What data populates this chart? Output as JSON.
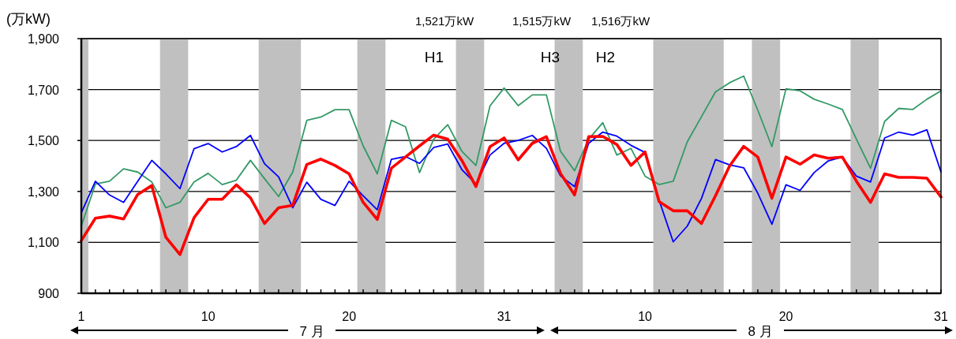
{
  "chart_data": {
    "type": "line",
    "ylabel": "(万kW)",
    "x": [
      "--07-01",
      "--07-02",
      "--07-03",
      "--07-04",
      "--07-05",
      "--07-06",
      "--07-07",
      "--07-08",
      "--07-09",
      "--07-10",
      "--07-11",
      "--07-12",
      "--07-13",
      "--07-14",
      "--07-15",
      "--07-16",
      "--07-17",
      "--07-18",
      "--07-19",
      "--07-20",
      "--07-21",
      "--07-22",
      "--07-23",
      "--07-24",
      "--07-25",
      "--07-26",
      "--07-27",
      "--07-28",
      "--07-29",
      "--07-30",
      "--07-31",
      "--08-01",
      "--08-02",
      "--08-03",
      "--08-04",
      "--08-05",
      "--08-06",
      "--08-07",
      "--08-08",
      "--08-09",
      "--08-10",
      "--08-11",
      "--08-12",
      "--08-13",
      "--08-14",
      "--08-15",
      "--08-16",
      "--08-17",
      "--08-18",
      "--08-19",
      "--08-20",
      "--08-21",
      "--08-22",
      "--08-23",
      "--08-24",
      "--08-25",
      "--08-26",
      "--08-27",
      "--08-28",
      "--08-29",
      "--08-30",
      "--08-31"
    ],
    "xlim": [
      "--07-01",
      "--08-31"
    ],
    "xticks": [
      {
        "value": "--07-01",
        "label": "1"
      },
      {
        "value": "--07-02",
        "label": null
      },
      {
        "value": "--07-03",
        "label": null
      },
      {
        "value": "--07-04",
        "label": null
      },
      {
        "value": "--07-05",
        "label": null
      },
      {
        "value": "--07-06",
        "label": null
      },
      {
        "value": "--07-07",
        "label": null
      },
      {
        "value": "--07-08",
        "label": null
      },
      {
        "value": "--07-09",
        "label": null
      },
      {
        "value": "--07-10",
        "label": "10"
      },
      {
        "value": "--07-11",
        "label": null
      },
      {
        "value": "--07-12",
        "label": null
      },
      {
        "value": "--07-13",
        "label": null
      },
      {
        "value": "--07-14",
        "label": null
      },
      {
        "value": "--07-15",
        "label": null
      },
      {
        "value": "--07-16",
        "label": null
      },
      {
        "value": "--07-17",
        "label": null
      },
      {
        "value": "--07-18",
        "label": null
      },
      {
        "value": "--07-19",
        "label": null
      },
      {
        "value": "--07-20",
        "label": "20"
      },
      {
        "value": "--07-21",
        "label": null
      },
      {
        "value": "--07-22",
        "label": null
      },
      {
        "value": "--07-23",
        "label": null
      },
      {
        "value": "--07-24",
        "label": null
      },
      {
        "value": "--07-25",
        "label": null
      },
      {
        "value": "--07-26",
        "label": null
      },
      {
        "value": "--07-27",
        "label": null
      },
      {
        "value": "--07-28",
        "label": null
      },
      {
        "value": "--07-29",
        "label": null
      },
      {
        "value": "--07-30",
        "label": null
      },
      {
        "value": "--07-31",
        "label": "31"
      },
      {
        "value": "--08-01",
        "label": null
      },
      {
        "value": "--08-02",
        "label": null
      },
      {
        "value": "--08-03",
        "label": null
      },
      {
        "value": "--08-04",
        "label": null
      },
      {
        "value": "--08-05",
        "label": null
      },
      {
        "value": "--08-06",
        "label": null
      },
      {
        "value": "--08-07",
        "label": null
      },
      {
        "value": "--08-08",
        "label": null
      },
      {
        "value": "--08-09",
        "label": null
      },
      {
        "value": "--08-10",
        "label": "10"
      },
      {
        "value": "--08-11",
        "label": null
      },
      {
        "value": "--08-12",
        "label": null
      },
      {
        "value": "--08-13",
        "label": null
      },
      {
        "value": "--08-14",
        "label": null
      },
      {
        "value": "--08-15",
        "label": null
      },
      {
        "value": "--08-16",
        "label": null
      },
      {
        "value": "--08-17",
        "label": null
      },
      {
        "value": "--08-18",
        "label": null
      },
      {
        "value": "--08-19",
        "label": null
      },
      {
        "value": "--08-20",
        "label": "20"
      },
      {
        "value": "--08-21",
        "label": null
      },
      {
        "value": "--08-22",
        "label": null
      },
      {
        "value": "--08-23",
        "label": null
      },
      {
        "value": "--08-24",
        "label": null
      },
      {
        "value": "--08-25",
        "label": null
      },
      {
        "value": "--08-26",
        "label": null
      },
      {
        "value": "--08-27",
        "label": null
      },
      {
        "value": "--08-28",
        "label": null
      },
      {
        "value": "--08-29",
        "label": null
      },
      {
        "value": "--08-30",
        "label": null
      },
      {
        "value": "--08-31",
        "label": "31"
      }
    ],
    "ylim": [
      900,
      1900
    ],
    "yticks": [
      900,
      {
        "value": 1100,
        "label": "1,100"
      },
      {
        "value": 1300,
        "label": "1,300"
      },
      {
        "value": 1500,
        "label": "1,500"
      },
      {
        "value": 1700,
        "label": "1,700"
      },
      {
        "value": 1900,
        "label": "1,900"
      }
    ],
    "grid": "y",
    "marker": "none",
    "line_style": "solid",
    "bands": [
      {
        "axis": "x",
        "from": "--07-01",
        "to": "--07-01T12:00",
        "color": "#c0c0c0"
      },
      {
        "axis": "x",
        "from": "--07-06T14:00",
        "to": "--07-08T14:00",
        "color": "#c0c0c0"
      },
      {
        "axis": "x",
        "from": "--07-13T14:00",
        "to": "--07-16T14:00",
        "color": "#c0c0c0"
      },
      {
        "axis": "x",
        "from": "--07-20T14:00",
        "to": "--07-22T14:00",
        "color": "#c0c0c0"
      },
      {
        "axis": "x",
        "from": "--07-27T14:00",
        "to": "--07-29T14:00",
        "color": "#c0c0c0"
      },
      {
        "axis": "x",
        "from": "--08-03T14:00",
        "to": "--08-05T14:00",
        "color": "#c0c0c0"
      },
      {
        "axis": "x",
        "from": "--08-10T14:00",
        "to": "--08-15T14:00",
        "color": "#c0c0c0"
      },
      {
        "axis": "x",
        "from": "--08-17T14:00",
        "to": "--08-19T14:00",
        "color": "#c0c0c0"
      },
      {
        "axis": "x",
        "from": "--08-24T14:00",
        "to": "--08-26T14:00",
        "color": "#c0c0c0"
      }
    ],
    "series": [
      {
        "color": "#339966",
        "values": [
          1164,
          1329,
          1340,
          1389,
          1376,
          1337,
          1236,
          1257,
          1337,
          1371,
          1327,
          1344,
          1422,
          1350,
          1280,
          1376,
          1579,
          1592,
          1621,
          1621,
          1479,
          1369,
          1579,
          1554,
          1374,
          1505,
          1562,
          1458,
          1402,
          1636,
          1706,
          1637,
          1679,
          1679,
          1458,
          1381,
          1505,
          1570,
          1443,
          1469,
          1360,
          1327,
          1340,
          1495,
          1593,
          1691,
          1727,
          1753,
          1619,
          1476,
          1703,
          1695,
          1662,
          1643,
          1622,
          1505,
          1391,
          1575,
          1626,
          1622,
          1662,
          1695
        ]
      },
      {
        "color": "#0000ff",
        "values": [
          1216,
          1340,
          1286,
          1257,
          1340,
          1422,
          1369,
          1311,
          1468,
          1488,
          1455,
          1476,
          1520,
          1409,
          1357,
          1236,
          1336,
          1269,
          1245,
          1340,
          1283,
          1228,
          1426,
          1437,
          1410,
          1472,
          1486,
          1386,
          1329,
          1443,
          1489,
          1500,
          1520,
          1469,
          1361,
          1319,
          1489,
          1533,
          1517,
          1481,
          1453,
          1265,
          1102,
          1164,
          1272,
          1425,
          1404,
          1393,
          1293,
          1171,
          1326,
          1304,
          1374,
          1420,
          1435,
          1360,
          1337,
          1510,
          1533,
          1521,
          1542,
          1376
        ]
      },
      {
        "color": "#ff0000",
        "values": [
          1107,
          1195,
          1203,
          1192,
          1288,
          1323,
          1120,
          1052,
          1197,
          1269,
          1269,
          1326,
          1275,
          1174,
          1236,
          1245,
          1406,
          1427,
          1402,
          1369,
          1257,
          1190,
          1391,
          1435,
          1479,
          1521,
          1505,
          1422,
          1319,
          1476,
          1510,
          1424,
          1489,
          1515,
          1371,
          1286,
          1515,
          1516,
          1484,
          1402,
          1455,
          1260,
          1224,
          1224,
          1174,
          1283,
          1400,
          1477,
          1435,
          1273,
          1435,
          1407,
          1443,
          1430,
          1435,
          1340,
          1257,
          1369,
          1355,
          1355,
          1352,
          1278
        ]
      }
    ],
    "annotations": [
      "1,521万kW",
      "1,515万kW",
      "1,516万kW",
      "H1",
      "H3",
      "H2",
      "7 月",
      "8 月"
    ]
  }
}
